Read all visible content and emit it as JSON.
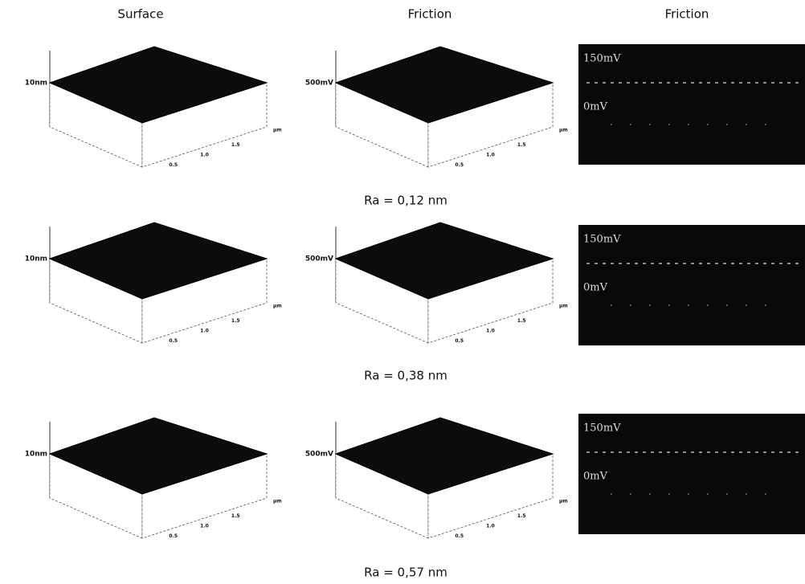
{
  "columns": [
    "Surface",
    "Friction",
    "Friction"
  ],
  "rows": [
    {
      "surface_label": "10nm",
      "friction_label": "500mV",
      "ticks": [
        "0.5",
        "1.0",
        "1.5"
      ],
      "unit": "µm",
      "trace_high": "150mV",
      "trace_low": "0mV",
      "roughness": "Ra = 0,12 nm"
    },
    {
      "surface_label": "10nm",
      "friction_label": "500mV",
      "ticks": [
        "0.5",
        "1.0",
        "1.5"
      ],
      "unit": "µm",
      "trace_high": "150mV",
      "trace_low": "0mV",
      "roughness": "Ra = 0,38 nm"
    },
    {
      "surface_label": "10nm",
      "friction_label": "500mV",
      "ticks": [
        "0.5",
        "1.0",
        "1.5"
      ],
      "unit": "µm",
      "trace_high": "150mV",
      "trace_low": "0mV",
      "roughness": "Ra = 0,57 nm"
    }
  ]
}
